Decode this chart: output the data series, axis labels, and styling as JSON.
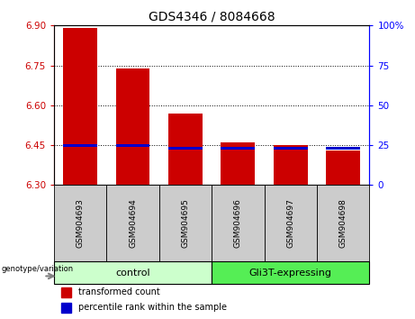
{
  "title": "GDS4346 / 8084668",
  "samples": [
    "GSM904693",
    "GSM904694",
    "GSM904695",
    "GSM904696",
    "GSM904697",
    "GSM904698"
  ],
  "red_tops": [
    6.89,
    6.74,
    6.57,
    6.46,
    6.45,
    6.43
  ],
  "blue_tops": [
    6.444,
    6.444,
    6.434,
    6.434,
    6.434,
    6.434
  ],
  "blue_heights": [
    0.01,
    0.01,
    0.008,
    0.008,
    0.008,
    0.008
  ],
  "bar_bottom": 6.3,
  "ylim": [
    6.3,
    6.9
  ],
  "yticks_left": [
    6.3,
    6.45,
    6.6,
    6.75,
    6.9
  ],
  "yticks_right": [
    0,
    25,
    50,
    75,
    100
  ],
  "y_right_labels": [
    "0",
    "25",
    "50",
    "75",
    "100%"
  ],
  "control_label": "control",
  "expressing_label": "Gli3T-expressing",
  "genotype_label": "genotype/variation",
  "legend_red": "transformed count",
  "legend_blue": "percentile rank within the sample",
  "bar_width": 0.65,
  "red_color": "#cc0000",
  "blue_color": "#0000cc",
  "control_bg": "#ccffcc",
  "expressing_bg": "#55ee55",
  "tick_label_bg": "#cccccc",
  "title_fontsize": 10,
  "tick_fontsize": 7.5,
  "sample_fontsize": 6.5,
  "group_fontsize": 8,
  "legend_fontsize": 7
}
